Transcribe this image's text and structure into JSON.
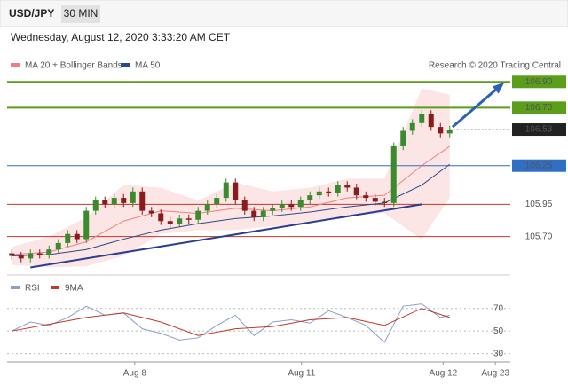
{
  "chart_data": {
    "type": "candlestick",
    "symbol": "USD/JPY",
    "timeframe": "30 MIN",
    "timestamp": "Wednesday, August 12, 2020 3:33:20 AM CET",
    "credit": "Research © 2020 Trading Central",
    "up_color": "#3c8a2e",
    "down_color": "#8b1a1a",
    "xlim": [
      -0.5,
      53.5
    ],
    "ylim": [
      105.45,
      106.95
    ],
    "xticks": [
      {
        "value": 13.2,
        "label": "Aug 8"
      },
      {
        "value": 31.1,
        "label": "Aug 11"
      },
      {
        "value": 46.3,
        "label": "Aug 12"
      },
      {
        "value": 51.9,
        "label": "Aug 23"
      }
    ],
    "open": [
      105.57,
      105.55,
      105.53,
      105.57,
      105.56,
      105.6,
      105.65,
      105.72,
      105.68,
      105.9,
      105.98,
      105.95,
      106.0,
      105.96,
      106.05,
      105.9,
      105.88,
      105.82,
      105.8,
      105.84,
      105.83,
      105.9,
      105.95,
      106.0,
      106.12,
      105.98,
      105.9,
      105.85,
      105.9,
      105.92,
      105.95,
      105.93,
      105.98,
      106.02,
      106.05,
      106.04,
      106.1,
      106.08,
      106.02,
      106.0,
      105.97,
      105.96,
      106.4,
      106.52,
      106.58,
      106.65,
      106.55,
      106.5
    ],
    "high": [
      105.6,
      105.58,
      105.6,
      105.6,
      105.63,
      105.68,
      105.75,
      105.75,
      105.93,
      106.01,
      106.01,
      106.03,
      106.03,
      106.08,
      106.08,
      105.93,
      105.91,
      105.85,
      105.87,
      105.87,
      105.93,
      105.98,
      106.03,
      106.15,
      106.15,
      106.01,
      105.93,
      105.93,
      105.95,
      105.98,
      105.98,
      106.01,
      106.05,
      106.08,
      106.08,
      106.13,
      106.13,
      106.11,
      106.05,
      106.03,
      106.0,
      106.43,
      106.55,
      106.61,
      106.68,
      106.68,
      106.58,
      106.56
    ],
    "low": [
      105.52,
      105.5,
      105.5,
      105.53,
      105.53,
      105.57,
      105.62,
      105.65,
      105.65,
      105.87,
      105.92,
      105.92,
      105.93,
      105.93,
      105.87,
      105.85,
      105.79,
      105.77,
      105.77,
      105.8,
      105.8,
      105.87,
      105.92,
      105.97,
      105.95,
      105.87,
      105.82,
      105.82,
      105.87,
      105.89,
      105.9,
      105.9,
      105.95,
      105.99,
      106.01,
      106.01,
      106.05,
      105.99,
      105.97,
      105.94,
      105.93,
      105.93,
      106.37,
      106.49,
      106.55,
      106.52,
      106.47,
      106.47
    ],
    "close": [
      105.55,
      105.53,
      105.57,
      105.56,
      105.6,
      105.65,
      105.72,
      105.68,
      105.9,
      105.98,
      105.95,
      106.0,
      105.96,
      106.05,
      105.9,
      105.88,
      105.82,
      105.8,
      105.84,
      105.83,
      105.9,
      105.95,
      106.0,
      106.12,
      105.98,
      105.9,
      105.85,
      105.9,
      105.92,
      105.95,
      105.93,
      105.98,
      106.02,
      106.05,
      106.04,
      106.1,
      106.08,
      106.02,
      106.0,
      105.97,
      105.96,
      106.4,
      106.52,
      106.58,
      106.65,
      106.55,
      106.5,
      106.53
    ],
    "overlays": {
      "x": [
        0,
        4,
        8,
        12,
        16,
        20,
        24,
        28,
        32,
        36,
        40,
        44,
        47
      ],
      "bollinger": {
        "name": "MA 20 + Bollinger Bands",
        "color": "#f08080",
        "fill": "#fbdcdc",
        "upper": [
          105.62,
          105.7,
          105.85,
          106.1,
          106.08,
          105.98,
          106.12,
          106.05,
          106.08,
          106.15,
          106.15,
          106.85,
          106.8
        ],
        "lower": [
          105.48,
          105.46,
          105.47,
          105.55,
          105.72,
          105.75,
          105.75,
          105.78,
          105.8,
          105.86,
          105.88,
          105.68,
          106.0
        ]
      },
      "series": [
        {
          "name": "MA 50",
          "color": "#2b4a8c",
          "values": [
            105.55,
            105.56,
            105.6,
            105.68,
            105.75,
            105.8,
            105.84,
            105.86,
            105.89,
            105.93,
            105.96,
            106.1,
            106.26
          ]
        },
        {
          "name": "MA 20",
          "color": "#f08080",
          "values": [
            105.56,
            105.58,
            105.66,
            105.82,
            105.9,
            105.88,
            105.92,
            105.9,
            105.93,
            106.0,
            106.02,
            106.25,
            106.4
          ]
        }
      ]
    },
    "levels": [
      {
        "value": 106.9,
        "label": "106.90",
        "color": "#5a9e1a",
        "boxed": true
      },
      {
        "value": 106.7,
        "label": "106.70",
        "color": "#5a9e1a",
        "boxed": true
      },
      {
        "value": 106.25,
        "label": "106.25",
        "color": "#2f6fc4",
        "boxed": true
      },
      {
        "value": 105.95,
        "label": "105.95",
        "color": "#c0392b",
        "boxed": false
      },
      {
        "value": 105.7,
        "label": "105.70",
        "color": "#c0392b",
        "boxed": false
      }
    ],
    "last_price": {
      "value": 106.53,
      "label": "106.53",
      "color": "#222"
    },
    "trendline": {
      "x": [
        2,
        44
      ],
      "y": [
        105.46,
        105.95
      ],
      "color": "#2b3f8c"
    },
    "arrow": {
      "x": [
        47.3,
        52.6
      ],
      "y": [
        106.55,
        106.88
      ],
      "color": "#2a62b5"
    },
    "rsi": {
      "ylim": [
        25,
        80
      ],
      "yticks": [
        30,
        50,
        70
      ],
      "series": [
        {
          "name": "RSI",
          "color": "#8aa0c8",
          "x": [
            0,
            2,
            4,
            6,
            8,
            10,
            12,
            14,
            16,
            18,
            20,
            22,
            24,
            26,
            28,
            30,
            32,
            34,
            36,
            38,
            40,
            42,
            44,
            46,
            47
          ],
          "values": [
            50,
            58,
            55,
            62,
            72,
            64,
            66,
            52,
            48,
            42,
            44,
            55,
            64,
            46,
            58,
            60,
            57,
            68,
            62,
            55,
            40,
            72,
            74,
            62,
            64
          ]
        },
        {
          "name": "9MA",
          "color": "#c0392b",
          "x": [
            0,
            4,
            8,
            12,
            16,
            20,
            24,
            28,
            32,
            36,
            40,
            44,
            47
          ],
          "values": [
            50,
            56,
            62,
            66,
            58,
            46,
            52,
            54,
            60,
            62,
            55,
            70,
            62
          ]
        }
      ]
    }
  }
}
